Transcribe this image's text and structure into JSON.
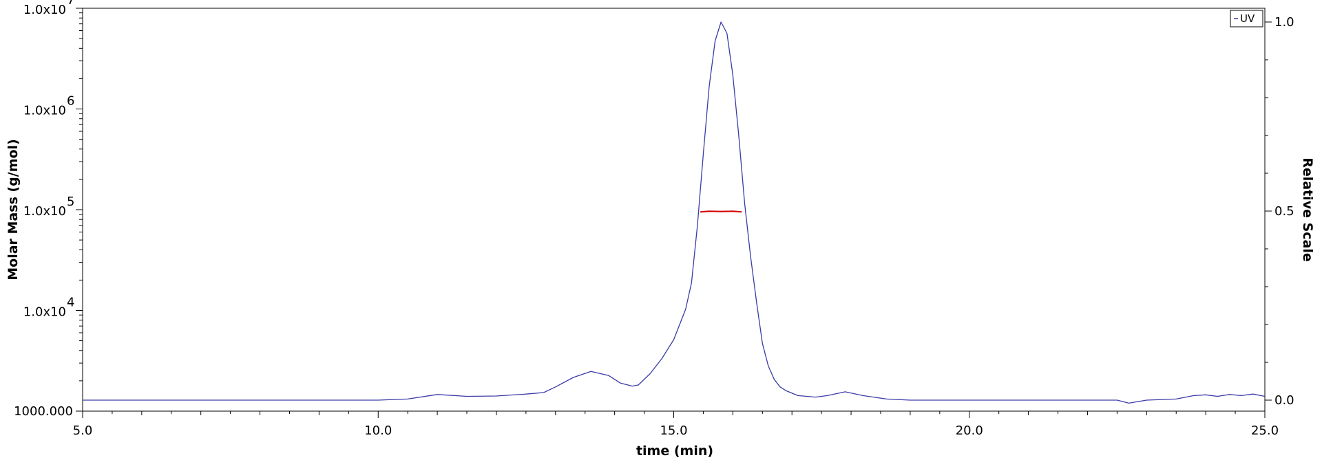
{
  "chart_data": {
    "type": "line",
    "xlabel": "time (min)",
    "ylabel_left": "Molar Mass (g/mol)",
    "ylabel_right": "Relative Scale",
    "xlim": [
      5.0,
      25.0
    ],
    "ylim_left": [
      1000,
      10000000
    ],
    "ylim_right": [
      0.0,
      1.0
    ],
    "left_scale": "log",
    "x_ticks": [
      5.0,
      10.0,
      15.0,
      20.0,
      25.0
    ],
    "x_tick_labels": [
      "5.0",
      "10.0",
      "15.0",
      "20.0",
      "25.0"
    ],
    "left_ticks": [
      {
        "mantissa": "1.0x10",
        "exp": "7"
      },
      {
        "mantissa": "1.0x10",
        "exp": "6"
      },
      {
        "mantissa": "1.0x10",
        "exp": "5"
      },
      {
        "mantissa": "1.0x10",
        "exp": "4"
      },
      {
        "plain": "1000.000"
      }
    ],
    "right_ticks": [
      "1.0",
      "0.5",
      "0.0"
    ],
    "right_tick_values": [
      1.0,
      0.5,
      0.0
    ],
    "grid": false,
    "legend": {
      "position": "top-right",
      "entries": [
        "UV"
      ]
    },
    "series": [
      {
        "name": "UV",
        "axis": "right",
        "color": "#3a3aa8",
        "x": [
          5.0,
          7.0,
          9.0,
          10.0,
          10.5,
          11.0,
          11.5,
          12.0,
          12.5,
          12.8,
          13.0,
          13.3,
          13.6,
          13.9,
          14.1,
          14.3,
          14.4,
          14.6,
          14.8,
          15.0,
          15.1,
          15.2,
          15.3,
          15.4,
          15.5,
          15.6,
          15.7,
          15.8,
          15.9,
          16.0,
          16.1,
          16.2,
          16.3,
          16.4,
          16.5,
          16.6,
          16.7,
          16.8,
          16.9,
          17.1,
          17.4,
          17.6,
          17.9,
          18.2,
          18.6,
          19.0,
          20.0,
          21.0,
          22.0,
          22.5,
          22.7,
          23.0,
          23.5,
          23.8,
          24.0,
          24.2,
          24.4,
          24.6,
          24.8,
          25.0
        ],
        "y": [
          0.0,
          0.0,
          0.0,
          0.0,
          0.003,
          0.015,
          0.01,
          0.011,
          0.016,
          0.02,
          0.035,
          0.06,
          0.076,
          0.065,
          0.045,
          0.037,
          0.04,
          0.07,
          0.11,
          0.16,
          0.2,
          0.24,
          0.31,
          0.46,
          0.65,
          0.83,
          0.95,
          1.0,
          0.97,
          0.86,
          0.7,
          0.52,
          0.38,
          0.26,
          0.15,
          0.09,
          0.055,
          0.035,
          0.025,
          0.012,
          0.008,
          0.012,
          0.022,
          0.012,
          0.003,
          0.0,
          0.0,
          0.0,
          0.0,
          0.0,
          -0.008,
          0.0,
          0.003,
          0.012,
          0.014,
          0.01,
          0.015,
          0.012,
          0.016,
          0.01
        ]
      },
      {
        "name": "Molar Mass",
        "axis": "left",
        "color": "#d40000",
        "x": [
          15.45,
          15.6,
          15.8,
          16.0,
          16.15
        ],
        "y": [
          95000,
          96500,
          96000,
          96500,
          95000
        ]
      }
    ]
  }
}
